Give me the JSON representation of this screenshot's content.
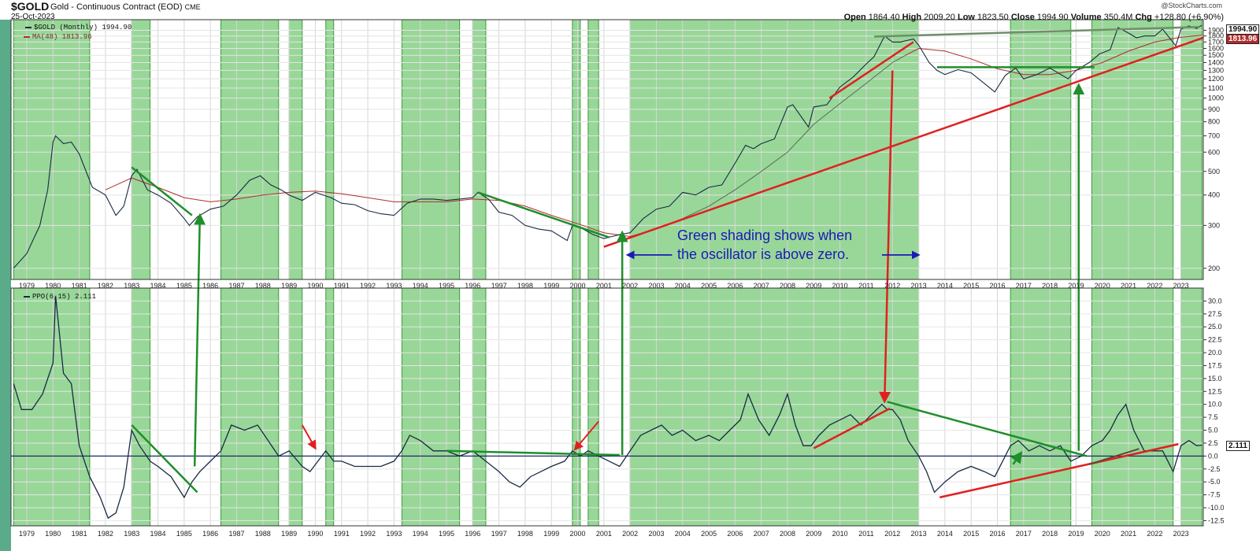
{
  "header": {
    "symbol": "$GOLD",
    "description": "Gold - Continuous Contract (EOD)",
    "exchange": "CME",
    "date": "25-Oct-2023",
    "credit": "@StockCharts.com",
    "ohlc": {
      "open_label": "Open",
      "open": "1864.40",
      "high_label": "High",
      "high": "2009.20",
      "low_label": "Low",
      "low": "1823.50",
      "close_label": "Close",
      "close": "1994.90",
      "volume_label": "Volume",
      "volume": "350.4M",
      "chg_label": "Chg",
      "chg": "+128.80 (+6.90%)"
    }
  },
  "legend": {
    "price": "$GOLD (Monthly) 1994.90",
    "ma": "MA(48) 1813.96",
    "ppo": "PPO(6,15) 2.111"
  },
  "value_labels": {
    "price": "1994.90",
    "ma": "1813.96",
    "ppo": "2.111"
  },
  "annotation": {
    "line1": "Green shading shows when",
    "line2": "the oscillator is above zero."
  },
  "colors": {
    "shade": "#86d086",
    "price_line": "#1a2a44",
    "ma_line": "#b02c2c",
    "ma_line_late": "#5a6a55",
    "ppo_line": "#1a2a44",
    "green_annot": "#1e8f2a",
    "red_annot": "#e02020",
    "blue_annot": "#1a1ab8",
    "zero_line": "#1a2a66"
  },
  "chart_data": [
    {
      "type": "line",
      "title": "$GOLD (Monthly)",
      "y_scale": "log",
      "ylim": [
        180,
        2100
      ],
      "xlim": [
        1978.4,
        2023.85
      ],
      "y_ticks": [
        200,
        300,
        400,
        500,
        600,
        700,
        800,
        900,
        1000,
        1100,
        1200,
        1300,
        1400,
        1500,
        1600,
        1700,
        1800,
        1900
      ],
      "x_ticks": [
        1979,
        1980,
        1981,
        1982,
        1983,
        1984,
        1985,
        1986,
        1987,
        1988,
        1989,
        1990,
        1991,
        1992,
        1993,
        1994,
        1995,
        1996,
        1997,
        1998,
        1999,
        2000,
        2001,
        2002,
        2003,
        2004,
        2005,
        2006,
        2007,
        2008,
        2009,
        2010,
        2011,
        2012,
        2013,
        2014,
        2015,
        2016,
        2017,
        2018,
        2019,
        2020,
        2021,
        2022,
        2023
      ],
      "grid": true,
      "series": [
        {
          "name": "$GOLD (Monthly)",
          "x": [
            1978.5,
            1979.0,
            1979.5,
            1979.8,
            1980.0,
            1980.1,
            1980.4,
            1980.7,
            1981.0,
            1981.5,
            1982.0,
            1982.4,
            1982.7,
            1983.0,
            1983.2,
            1983.6,
            1984.0,
            1984.5,
            1985.0,
            1985.2,
            1985.5,
            1986.0,
            1986.5,
            1987.0,
            1987.5,
            1987.9,
            1988.3,
            1988.7,
            1989.0,
            1989.5,
            1990.0,
            1990.6,
            1991.0,
            1991.5,
            1992.0,
            1992.5,
            1993.0,
            1993.5,
            1994.0,
            1994.5,
            1995.0,
            1995.5,
            1996.0,
            1996.2,
            1996.6,
            1997.0,
            1997.5,
            1998.0,
            1998.5,
            1999.0,
            1999.6,
            1999.8,
            2000.2,
            2000.6,
            2001.0,
            2001.3,
            2001.6,
            2002.0,
            2002.5,
            2003.0,
            2003.5,
            2004.0,
            2004.5,
            2005.0,
            2005.5,
            2006.0,
            2006.4,
            2006.7,
            2007.0,
            2007.5,
            2008.0,
            2008.2,
            2008.8,
            2009.0,
            2009.5,
            2010.0,
            2010.5,
            2011.0,
            2011.3,
            2011.7,
            2012.0,
            2012.3,
            2012.8,
            2013.0,
            2013.4,
            2013.7,
            2014.0,
            2014.5,
            2015.0,
            2015.5,
            2015.9,
            2016.3,
            2016.7,
            2017.0,
            2017.5,
            2018.0,
            2018.7,
            2019.0,
            2019.5,
            2019.9,
            2020.3,
            2020.6,
            2021.0,
            2021.3,
            2021.6,
            2022.0,
            2022.3,
            2022.8,
            2023.0,
            2023.3,
            2023.6,
            2023.8
          ],
          "values": [
            200,
            230,
            300,
            420,
            660,
            700,
            650,
            660,
            590,
            430,
            400,
            330,
            360,
            480,
            510,
            420,
            400,
            370,
            320,
            300,
            325,
            350,
            360,
            400,
            460,
            480,
            440,
            420,
            400,
            380,
            410,
            390,
            370,
            365,
            345,
            335,
            330,
            370,
            385,
            385,
            380,
            385,
            390,
            410,
            385,
            340,
            330,
            300,
            290,
            285,
            260,
            300,
            290,
            275,
            265,
            270,
            275,
            280,
            320,
            350,
            360,
            410,
            400,
            430,
            440,
            540,
            640,
            620,
            650,
            680,
            920,
            940,
            760,
            920,
            940,
            1110,
            1220,
            1380,
            1480,
            1800,
            1700,
            1700,
            1750,
            1650,
            1400,
            1300,
            1250,
            1310,
            1270,
            1150,
            1060,
            1240,
            1330,
            1200,
            1250,
            1330,
            1200,
            1300,
            1400,
            1520,
            1580,
            1950,
            1850,
            1770,
            1800,
            1800,
            1920,
            1640,
            1920,
            1980,
            1930,
            1995
          ]
        },
        {
          "name": "MA(48)",
          "x": [
            1982.0,
            1983.0,
            1984.0,
            1985.0,
            1986.0,
            1987.0,
            1988.0,
            1989.0,
            1990.0,
            1991.0,
            1992.0,
            1993.0,
            1994.0,
            1995.0,
            1996.0,
            1997.0,
            1998.0,
            1999.0,
            2000.0,
            2001.0,
            2002.0,
            2003.0,
            2004.0,
            2005.0,
            2006.0,
            2007.0,
            2008.0,
            2009.0,
            2010.0,
            2011.0,
            2012.0,
            2012.5,
            2013.0,
            2014.0,
            2015.0,
            2016.0,
            2017.0,
            2018.0,
            2019.0,
            2020.0,
            2021.0,
            2022.0,
            2023.0,
            2023.8
          ],
          "values": [
            420,
            470,
            430,
            390,
            375,
            385,
            400,
            410,
            415,
            405,
            390,
            375,
            375,
            375,
            385,
            380,
            360,
            330,
            305,
            280,
            270,
            290,
            320,
            360,
            420,
            500,
            600,
            780,
            950,
            1150,
            1400,
            1500,
            1600,
            1560,
            1450,
            1320,
            1250,
            1250,
            1300,
            1400,
            1560,
            1700,
            1780,
            1814
          ]
        }
      ]
    },
    {
      "type": "line",
      "title": "PPO(6,15)",
      "ylim": [
        -13.5,
        32.5
      ],
      "xlim": [
        1978.4,
        2023.85
      ],
      "y_ticks": [
        -12.5,
        -10.0,
        -7.5,
        -5.0,
        -2.5,
        0.0,
        2.5,
        5.0,
        7.5,
        10.0,
        12.5,
        15.0,
        17.5,
        20.0,
        22.5,
        25.0,
        27.5,
        30.0
      ],
      "series": [
        {
          "name": "PPO(6,15)",
          "x": [
            1978.5,
            1978.8,
            1979.2,
            1979.6,
            1980.0,
            1980.1,
            1980.4,
            1980.7,
            1981.0,
            1981.4,
            1981.8,
            1982.1,
            1982.4,
            1982.7,
            1983.0,
            1983.3,
            1983.7,
            1984.0,
            1984.5,
            1985.0,
            1985.3,
            1985.6,
            1986.0,
            1986.4,
            1986.8,
            1987.3,
            1987.8,
            1988.2,
            1988.6,
            1989.0,
            1989.5,
            1989.8,
            1990.1,
            1990.4,
            1990.7,
            1991.0,
            1991.5,
            1992.0,
            1992.5,
            1993.0,
            1993.3,
            1993.6,
            1994.0,
            1994.5,
            1995.0,
            1995.5,
            1996.0,
            1996.5,
            1997.0,
            1997.4,
            1997.8,
            1998.2,
            1998.6,
            1999.0,
            1999.5,
            1999.8,
            2000.1,
            2000.4,
            2000.8,
            2001.2,
            2001.6,
            2002.0,
            2002.4,
            2002.8,
            2003.2,
            2003.6,
            2004.0,
            2004.5,
            2005.0,
            2005.4,
            2005.8,
            2006.2,
            2006.5,
            2006.9,
            2007.3,
            2007.7,
            2008.0,
            2008.3,
            2008.6,
            2008.9,
            2009.2,
            2009.6,
            2010.0,
            2010.4,
            2010.8,
            2011.2,
            2011.6,
            2011.8,
            2012.0,
            2012.3,
            2012.6,
            2013.0,
            2013.3,
            2013.6,
            2014.0,
            2014.5,
            2015.0,
            2015.5,
            2015.9,
            2016.2,
            2016.5,
            2016.8,
            2017.2,
            2017.6,
            2018.0,
            2018.4,
            2018.8,
            2019.2,
            2019.6,
            2020.0,
            2020.3,
            2020.6,
            2020.9,
            2021.2,
            2021.6,
            2022.0,
            2022.3,
            2022.7,
            2023.0,
            2023.3,
            2023.6,
            2023.8
          ],
          "values": [
            14,
            9,
            9,
            12,
            18,
            31,
            16,
            14,
            2,
            -4,
            -8,
            -12,
            -11,
            -6,
            5,
            2,
            -1,
            -2,
            -4,
            -8,
            -5,
            -3,
            -1,
            1,
            6,
            5,
            6,
            3,
            0,
            1,
            -2,
            -3,
            -1,
            1,
            -1,
            -1,
            -2,
            -2,
            -2,
            -1,
            1,
            4,
            3,
            1,
            1,
            0,
            1,
            -1,
            -3,
            -5,
            -6,
            -4,
            -3,
            -2,
            -1,
            1,
            0,
            1,
            0,
            -1,
            -2,
            1,
            4,
            5,
            6,
            4,
            5,
            3,
            4,
            3,
            5,
            7,
            12,
            7,
            4,
            8,
            12,
            6,
            2,
            2,
            4,
            6,
            7,
            8,
            6,
            8,
            10,
            9,
            9,
            7,
            3,
            0,
            -3,
            -7,
            -5,
            -3,
            -2,
            -3,
            -4,
            -1,
            2,
            3,
            1,
            2,
            1,
            2,
            -1,
            0,
            2,
            3,
            5,
            8,
            10,
            5,
            1,
            1,
            1,
            -3,
            2,
            3,
            2,
            2.111
          ]
        }
      ]
    }
  ]
}
